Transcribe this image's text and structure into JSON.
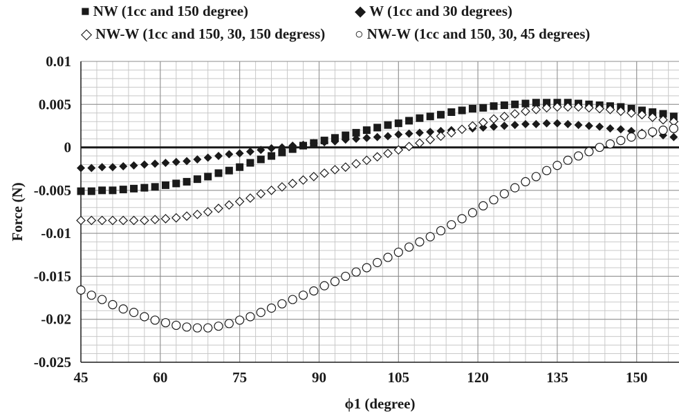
{
  "chart_data": {
    "type": "scatter",
    "xlabel": "ϕ1 (degree)",
    "ylabel": "Force (N)",
    "xlim": [
      45,
      158
    ],
    "ylim": [
      -0.025,
      0.01
    ],
    "x_ticks": [
      45,
      60,
      75,
      90,
      105,
      120,
      135,
      150
    ],
    "x_tick_labels": [
      "45",
      "60",
      "75",
      "90",
      "105",
      "120",
      "135",
      "150"
    ],
    "y_ticks": [
      -0.025,
      -0.02,
      -0.015,
      -0.01,
      -0.005,
      0,
      0.005,
      0.01
    ],
    "y_tick_labels": [
      "-0.025",
      "-0.02",
      "-0.015",
      "-0.01",
      "-0.005",
      "0",
      "0.005",
      "0.01"
    ],
    "grid": true,
    "legend_position": "top",
    "zero_line": true,
    "x": [
      45,
      47,
      49,
      51,
      53,
      55,
      57,
      59,
      61,
      63,
      65,
      67,
      69,
      71,
      73,
      75,
      77,
      79,
      81,
      83,
      85,
      87,
      89,
      91,
      93,
      95,
      97,
      99,
      101,
      103,
      105,
      107,
      109,
      111,
      113,
      115,
      117,
      119,
      121,
      123,
      125,
      127,
      129,
      131,
      133,
      135,
      137,
      139,
      141,
      143,
      145,
      147,
      149,
      151,
      153,
      155,
      157
    ],
    "series": [
      {
        "name": "NW (1cc and 150 degree)",
        "marker": "filled-square",
        "color": "#1a1a1a",
        "values": [
          -0.0051,
          -0.0051,
          -0.005,
          -0.005,
          -0.0049,
          -0.0048,
          -0.0047,
          -0.0046,
          -0.0044,
          -0.0042,
          -0.004,
          -0.0037,
          -0.0034,
          -0.003,
          -0.0027,
          -0.0023,
          -0.0018,
          -0.0014,
          -0.001,
          -0.0006,
          -0.0002,
          0.0002,
          0.0005,
          0.0008,
          0.0011,
          0.0014,
          0.0017,
          0.002,
          0.0023,
          0.0026,
          0.0028,
          0.0031,
          0.0034,
          0.0036,
          0.0038,
          0.0041,
          0.0043,
          0.0045,
          0.0046,
          0.0048,
          0.0049,
          0.005,
          0.0051,
          0.0052,
          0.0052,
          0.0052,
          0.0052,
          0.0051,
          0.005,
          0.0049,
          0.0048,
          0.0047,
          0.0045,
          0.0043,
          0.0041,
          0.0039,
          0.0036
        ]
      },
      {
        "name": "W (1cc and 30 degrees)",
        "marker": "filled-diamond",
        "color": "#1a1a1a",
        "values": [
          -0.0024,
          -0.0024,
          -0.0023,
          -0.0023,
          -0.0022,
          -0.0021,
          -0.002,
          -0.0019,
          -0.0018,
          -0.0017,
          -0.0016,
          -0.0014,
          -0.0012,
          -0.001,
          -0.0008,
          -0.0007,
          -0.0005,
          -0.0003,
          -0.0001,
          0.0,
          0.0002,
          0.0003,
          0.0005,
          0.0006,
          0.0007,
          0.0009,
          0.001,
          0.0011,
          0.0012,
          0.0013,
          0.0015,
          0.0016,
          0.0017,
          0.0018,
          0.0019,
          0.002,
          0.0021,
          0.0022,
          0.0023,
          0.0024,
          0.0025,
          0.0026,
          0.0027,
          0.0027,
          0.0028,
          0.0028,
          0.0027,
          0.0026,
          0.0025,
          0.0024,
          0.0022,
          0.0021,
          0.0019,
          0.0017,
          0.0016,
          0.0014,
          0.0012
        ]
      },
      {
        "name": "NW-W (1cc and 150, 30, 150 degress)",
        "marker": "open-diamond",
        "color": "#1a1a1a",
        "values": [
          -0.0085,
          -0.0085,
          -0.0085,
          -0.0085,
          -0.0085,
          -0.0085,
          -0.0085,
          -0.0084,
          -0.0083,
          -0.0082,
          -0.008,
          -0.0078,
          -0.0075,
          -0.0071,
          -0.0067,
          -0.0063,
          -0.0059,
          -0.0054,
          -0.005,
          -0.0046,
          -0.0042,
          -0.0038,
          -0.0034,
          -0.003,
          -0.0026,
          -0.0023,
          -0.0019,
          -0.0015,
          -0.0011,
          -0.0007,
          -0.0003,
          0.0001,
          0.0005,
          0.0009,
          0.0013,
          0.0017,
          0.0021,
          0.0025,
          0.0029,
          0.0033,
          0.0036,
          0.0039,
          0.0042,
          0.0044,
          0.0046,
          0.0047,
          0.0047,
          0.0047,
          0.0046,
          0.0045,
          0.0044,
          0.0042,
          0.004,
          0.0038,
          0.0035,
          0.0032,
          0.003
        ]
      },
      {
        "name": "NW-W (1cc and 150, 30, 45 degrees)",
        "marker": "open-circle",
        "color": "#1a1a1a",
        "values": [
          -0.0166,
          -0.0172,
          -0.0177,
          -0.0183,
          -0.0188,
          -0.0192,
          -0.0197,
          -0.0201,
          -0.0204,
          -0.0207,
          -0.0209,
          -0.021,
          -0.021,
          -0.0208,
          -0.0205,
          -0.0201,
          -0.0197,
          -0.0192,
          -0.0187,
          -0.0182,
          -0.0177,
          -0.0172,
          -0.0167,
          -0.0161,
          -0.0156,
          -0.015,
          -0.0145,
          -0.014,
          -0.0134,
          -0.0128,
          -0.0122,
          -0.0116,
          -0.011,
          -0.0104,
          -0.0097,
          -0.009,
          -0.0083,
          -0.0076,
          -0.0068,
          -0.0061,
          -0.0054,
          -0.0047,
          -0.004,
          -0.0034,
          -0.0027,
          -0.0021,
          -0.0015,
          -0.001,
          -0.0005,
          0.0,
          0.0004,
          0.0008,
          0.0012,
          0.0015,
          0.0018,
          0.002,
          0.0022
        ]
      }
    ]
  }
}
